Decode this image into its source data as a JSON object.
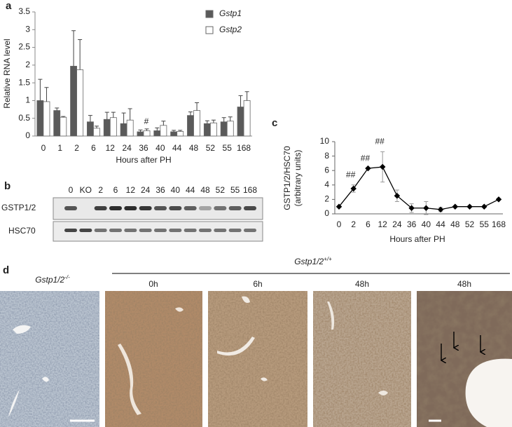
{
  "panels": [
    "a",
    "b",
    "c",
    "d"
  ],
  "chart_data": [
    {
      "type": "bar",
      "ylabel": "Relative RNA level",
      "xlabel": "Hours after PH",
      "categories": [
        "0",
        "1",
        "2",
        "6",
        "12",
        "24",
        "36",
        "40",
        "44",
        "48",
        "52",
        "55",
        "168"
      ],
      "series": [
        {
          "name": "Gstp1",
          "color": "#5a5a5a",
          "values": [
            1.0,
            0.72,
            1.97,
            0.4,
            0.47,
            0.35,
            0.12,
            0.15,
            0.12,
            0.58,
            0.35,
            0.4,
            0.82
          ],
          "errors": [
            0.6,
            0.07,
            1.0,
            0.18,
            0.2,
            0.3,
            0.05,
            0.08,
            0.04,
            0.1,
            0.08,
            0.12,
            0.32
          ]
        },
        {
          "name": "Gstp2",
          "color": "#ffffff",
          "values": [
            0.97,
            0.53,
            1.87,
            0.22,
            0.52,
            0.45,
            0.15,
            0.3,
            0.13,
            0.72,
            0.37,
            0.42,
            1.0
          ],
          "errors": [
            0.4,
            0.02,
            0.85,
            0.06,
            0.15,
            0.32,
            0.05,
            0.12,
            0.03,
            0.22,
            0.08,
            0.12,
            0.25
          ]
        }
      ],
      "ylim": [
        0,
        3.5
      ],
      "yticks": [
        0,
        0.5,
        1,
        1.5,
        2,
        2.5,
        3,
        3.5
      ],
      "annotations": [
        {
          "text": "#",
          "category": "36"
        }
      ]
    },
    {
      "type": "line",
      "ylabel": "GSTP1/2/HSC70",
      "ylabel_sub": "(arbitrary units)",
      "xlabel": "Hours after PH",
      "categories": [
        "0",
        "2",
        "6",
        "12",
        "24",
        "36",
        "40",
        "44",
        "48",
        "52",
        "55",
        "168"
      ],
      "values": [
        1.0,
        3.5,
        6.3,
        6.5,
        2.5,
        0.8,
        0.8,
        0.6,
        1.0,
        1.0,
        1.0,
        2.0
      ],
      "errors": [
        null,
        0.5,
        null,
        2.1,
        0.8,
        0.6,
        0.9,
        0.3,
        null,
        null,
        null,
        null
      ],
      "color": "#000000",
      "ylim": [
        0,
        10
      ],
      "yticks": [
        0,
        2,
        4,
        6,
        8,
        10
      ],
      "annotations": [
        {
          "text": "##",
          "category": "2"
        },
        {
          "text": "##",
          "category": "6"
        },
        {
          "text": "##",
          "category": "12"
        }
      ]
    }
  ],
  "blot": {
    "lanes": [
      "0",
      "KO",
      "2",
      "6",
      "12",
      "24",
      "36",
      "40",
      "44",
      "48",
      "52",
      "55",
      "168"
    ],
    "rows": [
      "GSTP1/2",
      "HSC70"
    ]
  },
  "micrographs": {
    "control_label": {
      "text": "Gstp1/2",
      "sup": "-/-"
    },
    "group_label": {
      "text": "Gstp1/2",
      "sup": "+/+"
    },
    "time_labels": [
      "0h",
      "6h",
      "48h",
      "48h"
    ]
  }
}
